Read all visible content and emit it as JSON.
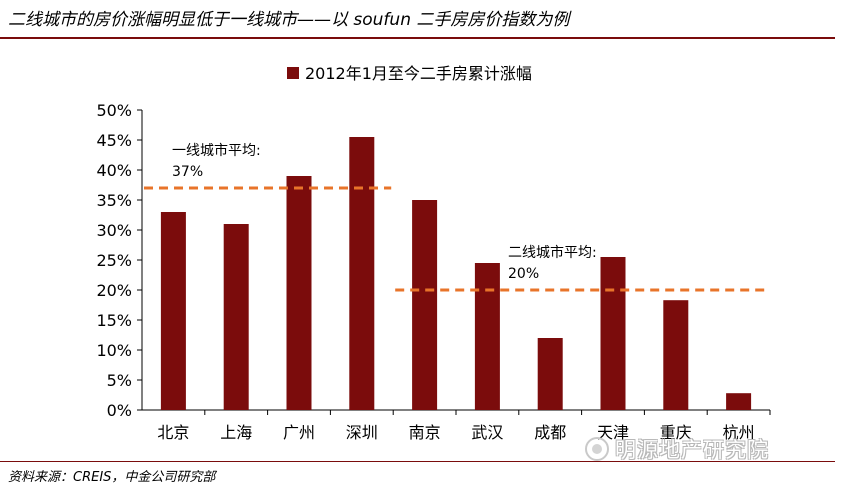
{
  "header": {
    "title": "二线城市的房价涨幅明显低于一线城市——以 soufun 二手房房价指数为例"
  },
  "footer": {
    "source": "资料来源：CREIS，中金公司研究部",
    "watermark": "明源地产研究院"
  },
  "chart_data": {
    "type": "bar",
    "legend": "2012年1月至今二手房累计涨幅",
    "legend_position": "top-center",
    "categories": [
      "北京",
      "上海",
      "广州",
      "深圳",
      "南京",
      "武汉",
      "成都",
      "天津",
      "重庆",
      "杭州"
    ],
    "values": [
      33,
      31,
      39,
      45.5,
      35,
      24.5,
      12,
      25.5,
      18.3,
      2.8
    ],
    "ylim": [
      0,
      50
    ],
    "yticks": [
      "0%",
      "5%",
      "10%",
      "15%",
      "20%",
      "25%",
      "30%",
      "35%",
      "40%",
      "45%",
      "50%"
    ],
    "grid": false,
    "bar_color": "#7b0c0c",
    "annotations": [
      {
        "label": "一线城市平均:",
        "value_text": "37%",
        "value": 37,
        "from": 0,
        "to": 3,
        "color": "#e8742a"
      },
      {
        "label": "二线城市平均:",
        "value_text": "20%",
        "value": 20,
        "from": 4,
        "to": 9,
        "color": "#e8742a"
      }
    ]
  }
}
